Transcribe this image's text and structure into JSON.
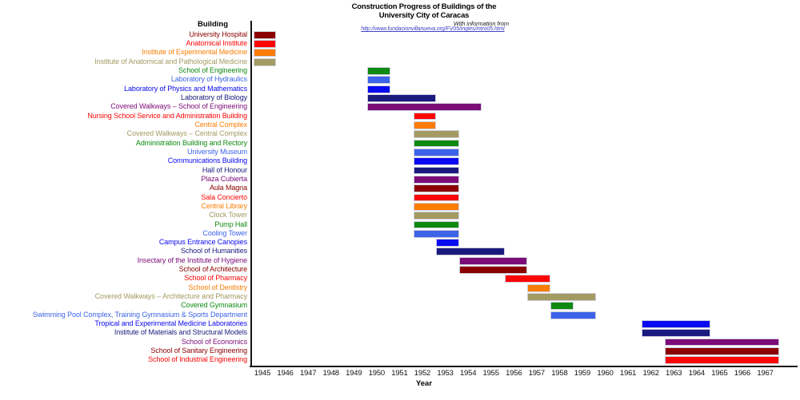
{
  "title": {
    "line1": "Construction Progress of Buildings of the",
    "line2": "University City of Caracas",
    "credit": "With information from",
    "url": "http://www.fundacionvillanueva.org/FV05/ingles/intro05.html"
  },
  "palette": {
    "darkred": "#8B0000",
    "red": "#FB0505",
    "orange": "#FC7D05",
    "khaki": "#A39B62",
    "green": "#0E8A10",
    "royalblue": "#3D63E8",
    "blue": "#0A0AF0",
    "navy": "#1A1A7E",
    "purple": "#7B0C78"
  },
  "chart_data": {
    "type": "bar",
    "subtype": "gantt",
    "title": "Construction Progress of Buildings of the University City of Caracas",
    "xlabel": "Year",
    "ylabel": "Building",
    "xlim": [
      1944.5,
      1968.1
    ],
    "x_ticks": [
      1945,
      1946,
      1947,
      1948,
      1949,
      1950,
      1951,
      1952,
      1953,
      1954,
      1955,
      1956,
      1957,
      1958,
      1959,
      1960,
      1961,
      1962,
      1963,
      1964,
      1965,
      1966,
      1967
    ],
    "grid": false,
    "rows": [
      {
        "label": "University Hospital",
        "color": "darkred",
        "start": 1945,
        "end": 1945
      },
      {
        "label": "Anatomical Institute",
        "color": "red",
        "start": 1945,
        "end": 1945
      },
      {
        "label": "Institute of Experimental Medicine",
        "color": "orange",
        "start": 1945,
        "end": 1945
      },
      {
        "label": "Institute of Anatomical and Pathological Medicine",
        "color": "khaki",
        "start": 1945,
        "end": 1945
      },
      {
        "label": "School of Engineering",
        "color": "green",
        "start": 1950,
        "end": 1950
      },
      {
        "label": "Laboratory of Hydraulics",
        "color": "royalblue",
        "start": 1950,
        "end": 1950
      },
      {
        "label": "Laboratory of Physics and Mathematics",
        "color": "blue",
        "start": 1950,
        "end": 1950
      },
      {
        "label": "Laboratory of Biology",
        "color": "navy",
        "start": 1950,
        "end": 1952
      },
      {
        "label": "Covered Walkways – School of Engineering",
        "color": "purple",
        "start": 1950,
        "end": 1954
      },
      {
        "label": "Nursing School Service and Administration Building",
        "color": "red",
        "start": 1952,
        "end": 1952
      },
      {
        "label": "Central Complex",
        "color": "orange",
        "start": 1952,
        "end": 1952
      },
      {
        "label": "Covered Walkways – Central Complex",
        "color": "khaki",
        "start": 1952,
        "end": 1953
      },
      {
        "label": "Administration Building and Rectory",
        "color": "green",
        "start": 1952,
        "end": 1953
      },
      {
        "label": "University Museum",
        "color": "royalblue",
        "start": 1952,
        "end": 1953
      },
      {
        "label": "Communications Building",
        "color": "blue",
        "start": 1952,
        "end": 1953
      },
      {
        "label": "Hall of Honour",
        "color": "navy",
        "start": 1952,
        "end": 1953
      },
      {
        "label": "Plaza Cubierta",
        "color": "purple",
        "start": 1952,
        "end": 1953
      },
      {
        "label": "Aula Magna",
        "color": "darkred",
        "start": 1952,
        "end": 1953
      },
      {
        "label": "Sala Concierto",
        "color": "red",
        "start": 1952,
        "end": 1953
      },
      {
        "label": "Central Library",
        "color": "orange",
        "start": 1952,
        "end": 1953
      },
      {
        "label": "Clock Tower",
        "color": "khaki",
        "start": 1952,
        "end": 1953
      },
      {
        "label": "Pump Hall",
        "color": "green",
        "start": 1952,
        "end": 1953
      },
      {
        "label": "Cooling Tower",
        "color": "royalblue",
        "start": 1952,
        "end": 1953
      },
      {
        "label": "Campus Entrance Canopies",
        "color": "blue",
        "start": 1953,
        "end": 1953
      },
      {
        "label": "School of Humanities",
        "color": "navy",
        "start": 1953,
        "end": 1955
      },
      {
        "label": "Insectary of the Institute of Hygiene",
        "color": "purple",
        "start": 1954,
        "end": 1956
      },
      {
        "label": "School of Architecture",
        "color": "darkred",
        "start": 1954,
        "end": 1956
      },
      {
        "label": "School of Pharmacy",
        "color": "red",
        "start": 1956,
        "end": 1957
      },
      {
        "label": "School of Dentistry",
        "color": "orange",
        "start": 1957,
        "end": 1957
      },
      {
        "label": "Covered Walkways – Architecture and Pharmacy",
        "color": "khaki",
        "start": 1957,
        "end": 1959
      },
      {
        "label": "Covered Gymnasium",
        "color": "green",
        "start": 1958,
        "end": 1958
      },
      {
        "label": "Swimming Pool Complex, Training Gymnasium & Sports Department",
        "color": "royalblue",
        "start": 1958,
        "end": 1959
      },
      {
        "label": "Tropical and Experimental Medicine Laboratories",
        "color": "blue",
        "start": 1962,
        "end": 1964
      },
      {
        "label": "Institute of Materials and Structural Models",
        "color": "navy",
        "start": 1962,
        "end": 1964
      },
      {
        "label": "School of Economics",
        "color": "purple",
        "start": 1963,
        "end": 1967
      },
      {
        "label": "School of Sanitary Engineering",
        "color": "darkred",
        "start": 1963,
        "end": 1967
      },
      {
        "label": "School of Industrial Engineering",
        "color": "red",
        "start": 1963,
        "end": 1967
      }
    ]
  }
}
